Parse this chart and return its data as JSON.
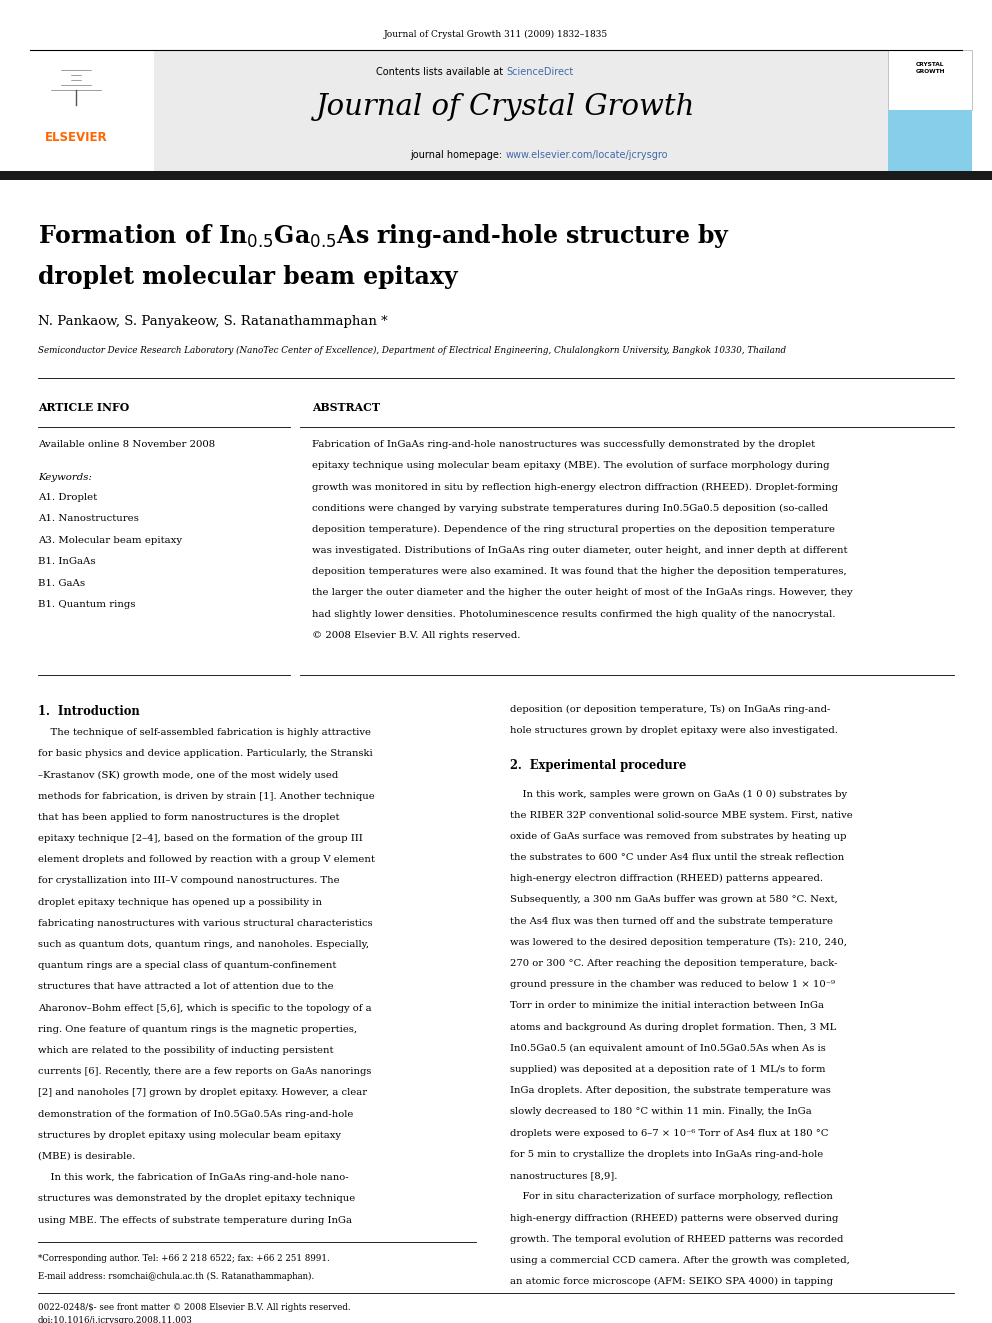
{
  "page_width": 9.92,
  "page_height": 13.23,
  "bg_color": "#ffffff",
  "header_journal_ref": "Journal of Crystal Growth 311 (2009) 1832–1835",
  "header_bg": "#e8e8e8",
  "header_contents": "Contents lists available at ",
  "header_sciencedirect": "ScienceDirect",
  "header_sciencedirect_color": "#4169aa",
  "header_journal_name": "Journal of Crystal Growth",
  "header_homepage_text": "journal homepage: ",
  "header_homepage_url": "www.elsevier.com/locate/jcrysgro",
  "header_url_color": "#4169aa",
  "divider_color": "#000000",
  "title_line1": "Formation of In$_{0.5}$Ga$_{0.5}$As ring-and-hole structure by",
  "title_line2": "droplet molecular beam epitaxy",
  "authors": "N. Pankaow, S. Panyakeow, S. Ratanathammaphan *",
  "affiliation": "Semiconductor Device Research Laboratory (NanoTec Center of Excellence), Department of Electrical Engineering, Chulalongkorn University, Bangkok 10330, Thailand",
  "article_info_label": "ARTICLE INFO",
  "abstract_label": "ABSTRACT",
  "available_online": "Available online 8 November 2008",
  "keywords_label": "Keywords:",
  "keywords": [
    "A1. Droplet",
    "A1. Nanostructures",
    "A3. Molecular beam epitaxy",
    "B1. InGaAs",
    "B1. GaAs",
    "B1. Quantum rings"
  ],
  "abstract_lines": [
    "Fabrication of InGaAs ring-and-hole nanostructures was successfully demonstrated by the droplet",
    "epitaxy technique using molecular beam epitaxy (MBE). The evolution of surface morphology during",
    "growth was monitored in situ by reflection high-energy electron diffraction (RHEED). Droplet-forming",
    "conditions were changed by varying substrate temperatures during In0.5Ga0.5 deposition (so-called",
    "deposition temperature). Dependence of the ring structural properties on the deposition temperature",
    "was investigated. Distributions of InGaAs ring outer diameter, outer height, and inner depth at different",
    "deposition temperatures were also examined. It was found that the higher the deposition temperatures,",
    "the larger the outer diameter and the higher the outer height of most of the InGaAs rings. However, they",
    "had slightly lower densities. Photoluminescence results confirmed the high quality of the nanocrystal.",
    "© 2008 Elsevier B.V. All rights reserved."
  ],
  "section1_title": "1.  Introduction",
  "body_left_lines": [
    "    The technique of self-assembled fabrication is highly attractive",
    "for basic physics and device application. Particularly, the Stranski",
    "–Krastanov (SK) growth mode, one of the most widely used",
    "methods for fabrication, is driven by strain [1]. Another technique",
    "that has been applied to form nanostructures is the droplet",
    "epitaxy technique [2–4], based on the formation of the group III",
    "element droplets and followed by reaction with a group V element",
    "for crystallization into III–V compound nanostructures. The",
    "droplet epitaxy technique has opened up a possibility in",
    "fabricating nanostructures with various structural characteristics",
    "such as quantum dots, quantum rings, and nanoholes. Especially,",
    "quantum rings are a special class of quantum-confinement",
    "structures that have attracted a lot of attention due to the",
    "Aharonov–Bohm effect [5,6], which is specific to the topology of a",
    "ring. One feature of quantum rings is the magnetic properties,",
    "which are related to the possibility of inducting persistent",
    "currents [6]. Recently, there are a few reports on GaAs nanorings",
    "[2] and nanoholes [7] grown by droplet epitaxy. However, a clear",
    "demonstration of the formation of In0.5Ga0.5As ring-and-hole",
    "structures by droplet epitaxy using molecular beam epitaxy",
    "(MBE) is desirable.",
    "    In this work, the fabrication of InGaAs ring-and-hole nano-",
    "structures was demonstrated by the droplet epitaxy technique",
    "using MBE. The effects of substrate temperature during InGa"
  ],
  "section2_title": "2.  Experimental procedure",
  "body_right_intro": [
    "deposition (or deposition temperature, Ts) on InGaAs ring-and-",
    "hole structures grown by droplet epitaxy were also investigated."
  ],
  "body_right_lines": [
    "    In this work, samples were grown on GaAs (1 0 0) substrates by",
    "the RIBER 32P conventional solid-source MBE system. First, native",
    "oxide of GaAs surface was removed from substrates by heating up",
    "the substrates to 600 °C under As4 flux until the streak reflection",
    "high-energy electron diffraction (RHEED) patterns appeared.",
    "Subsequently, a 300 nm GaAs buffer was grown at 580 °C. Next,",
    "the As4 flux was then turned off and the substrate temperature",
    "was lowered to the desired deposition temperature (Ts): 210, 240,",
    "270 or 300 °C. After reaching the deposition temperature, back-",
    "ground pressure in the chamber was reduced to below 1 × 10⁻⁹",
    "Torr in order to minimize the initial interaction between InGa",
    "atoms and background As during droplet formation. Then, 3 ML",
    "In0.5Ga0.5 (an equivalent amount of In0.5Ga0.5As when As is",
    "supplied) was deposited at a deposition rate of 1 ML/s to form",
    "InGa droplets. After deposition, the substrate temperature was",
    "slowly decreased to 180 °C within 11 min. Finally, the InGa",
    "droplets were exposed to 6–7 × 10⁻⁶ Torr of As4 flux at 180 °C",
    "for 5 min to crystallize the droplets into InGaAs ring-and-hole",
    "nanostructures [8,9].",
    "    For in situ characterization of surface morphology, reflection",
    "high-energy diffraction (RHEED) patterns were observed during",
    "growth. The temporal evolution of RHEED patterns was recorded",
    "using a commercial CCD camera. After the growth was completed,",
    "an atomic force microscope (AFM: SEIKO SPA 4000) in tapping"
  ],
  "footnote_corresponding": "*Corresponding author. Tel: +66 2 218 6522; fax: +66 2 251 8991.",
  "footnote_email": "E-mail address: rsomchai@chula.ac.th (S. Ratanathammaphan).",
  "footnote_issn": "0022-0248/$- see front matter © 2008 Elsevier B.V. All rights reserved.",
  "footnote_doi": "doi:10.1016/j.jcrysgro.2008.11.003",
  "elsevier_color": "#ff6600",
  "crystal_growth_bg": "#87ceeb",
  "thick_divider_color": "#1a1a1a"
}
